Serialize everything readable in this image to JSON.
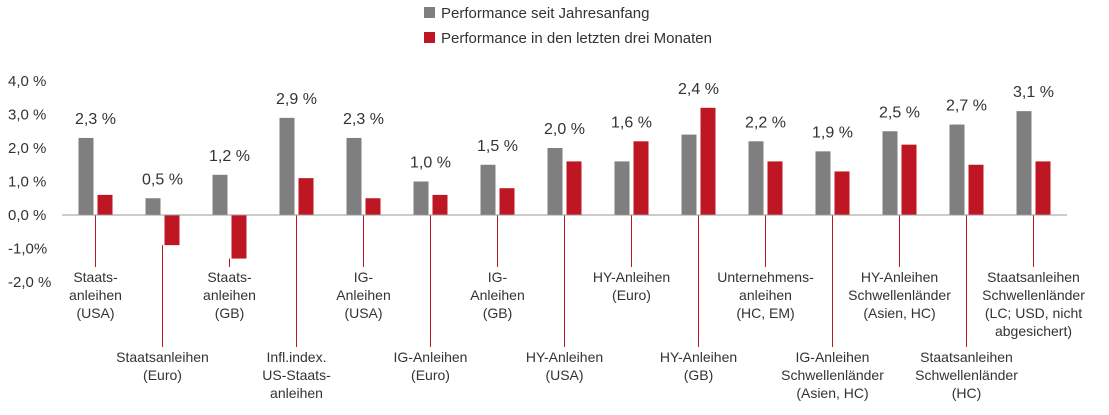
{
  "chart_data": {
    "type": "bar",
    "title": "",
    "xlabel": "",
    "ylabel": "",
    "ylim": [
      -2.0,
      4.0
    ],
    "y_ticks": [
      "4,0 %",
      "3,0 %",
      "2,0 %",
      "1,0 %",
      "0,0 %",
      "-1,0%",
      "-2,0 %"
    ],
    "grid": false,
    "legend": {
      "placement": "top-center",
      "entries": [
        "Performance seit Jahresanfang",
        "Performance in den letzten drei Monaten"
      ]
    },
    "categories": [
      "Staatsanleihen (USA)",
      "Staatsanleihen (Euro)",
      "Staatsanleihen (GB)",
      "Infl.index. US-Staatsanleihen",
      "IG-Anleihen (USA)",
      "IG-Anleihen (Euro)",
      "IG-Anleihen (GB)",
      "HY-Anleihen (USA)",
      "HY-Anleihen (Euro)",
      "HY-Anleihen (GB)",
      "Unternehmensanleihen (HC, EM)",
      "IG-Anleihen Schwellenländer (Asien, HC)",
      "HY-Anleihen Schwellenländer (Asien, HC)",
      "Staatsanleihen Schwellenländer (HC)",
      "Staatsanleihen Schwellenländer (LC; USD, nicht abgesichert)"
    ],
    "category_label_lines": [
      [
        "Staats-",
        "anleihen",
        "(USA)"
      ],
      [
        "Staatsanleihen",
        "(Euro)"
      ],
      [
        "Staats-",
        "anleihen",
        "(GB)"
      ],
      [
        "Infl.index.",
        "US-Staats-",
        "anleihen"
      ],
      [
        "IG-",
        "Anleihen",
        "(USA)"
      ],
      [
        "IG-Anleihen",
        "(Euro)"
      ],
      [
        "IG-",
        "Anleihen",
        "(GB)"
      ],
      [
        "HY-Anleihen",
        "(USA)"
      ],
      [
        "HY-Anleihen",
        "(Euro)"
      ],
      [
        "HY-Anleihen",
        "(GB)"
      ],
      [
        "Unternehmens-",
        "anleihen",
        "(HC, EM)"
      ],
      [
        "IG-Anleihen",
        "Schwellenländer",
        "(Asien, HC)"
      ],
      [
        "HY-Anleihen",
        "Schwellenländer",
        "(Asien, HC)"
      ],
      [
        "Staatsanleihen",
        "Schwellenländer",
        "(HC)"
      ],
      [
        "Staatsanleihen",
        "Schwellenländer",
        "(LC; USD, nicht",
        "abgesichert)"
      ]
    ],
    "label_position": [
      "high",
      "low",
      "high",
      "low",
      "high",
      "low",
      "high",
      "low",
      "high",
      "low",
      "high",
      "low",
      "high",
      "low",
      "high"
    ],
    "series": [
      {
        "name": "Performance seit Jahresanfang",
        "color": "#7f7f7f",
        "values": [
          2.3,
          0.5,
          1.2,
          2.9,
          2.3,
          1.0,
          1.5,
          2.0,
          1.6,
          2.4,
          2.2,
          1.9,
          2.5,
          2.7,
          3.1
        ],
        "data_labels": [
          "2,3 %",
          "0,5 %",
          "1,2 %",
          "2,9 %",
          "2,3 %",
          "1,0 %",
          "1,5 %",
          "2,0 %",
          "1,6 %",
          "2,4 %",
          "2,2 %",
          "1,9 %",
          "2,5 %",
          "2,7 %",
          "3,1 %"
        ]
      },
      {
        "name": "Performance in den letzten drei Monaten",
        "color": "#be1622",
        "values": [
          0.6,
          -0.9,
          -1.3,
          1.1,
          0.5,
          0.6,
          0.8,
          1.6,
          2.2,
          3.2,
          1.6,
          1.3,
          2.1,
          1.5,
          1.6
        ]
      }
    ]
  }
}
